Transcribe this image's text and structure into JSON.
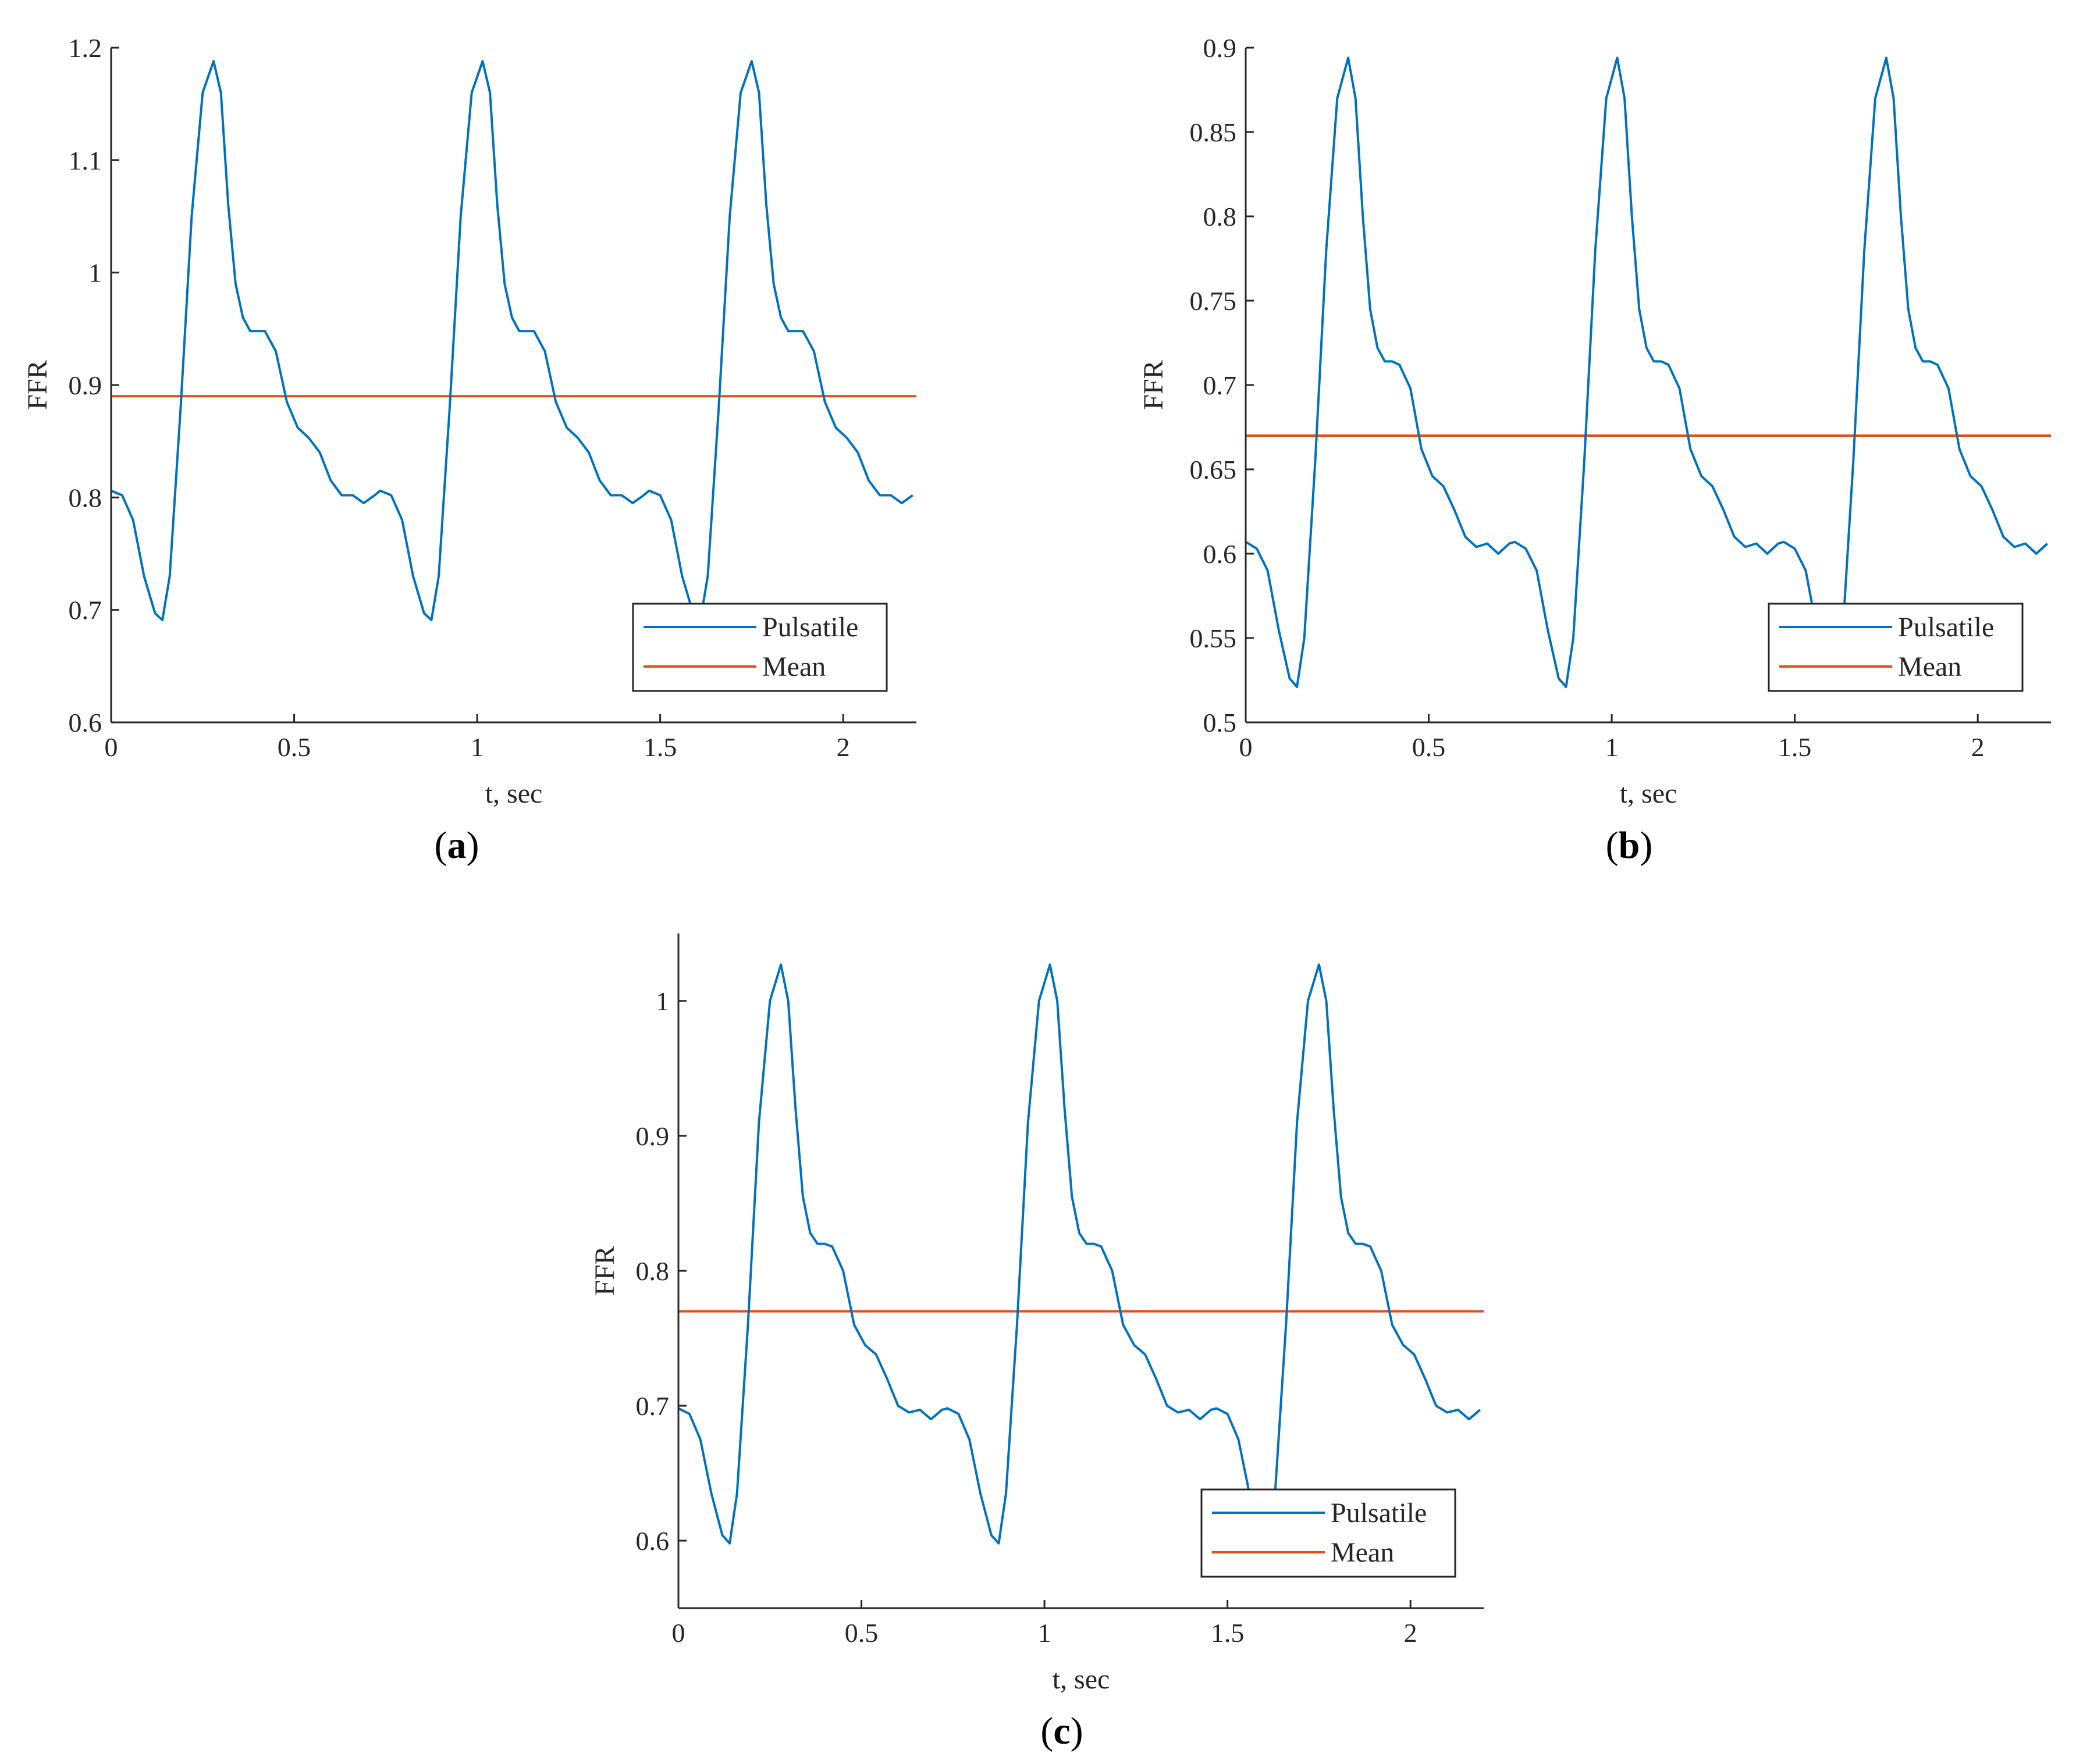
{
  "figure": {
    "colors": {
      "pulsatile": "#0072BD",
      "mean": "#D95319",
      "axis": "#262626"
    },
    "panels": [
      "a",
      "b",
      "c"
    ]
  },
  "chart_data": [
    {
      "id": "a",
      "type": "line",
      "panel_label": "a",
      "xlabel": "t, sec",
      "ylabel": "FFR",
      "xlim": [
        0,
        2.2
      ],
      "ylim": [
        0.6,
        1.2
      ],
      "xticks": [
        0,
        0.5,
        1,
        1.5,
        2
      ],
      "xtick_labels": [
        "0",
        "0.5",
        "1",
        "1.5",
        "2"
      ],
      "yticks": [
        0.6,
        0.7,
        0.8,
        0.9,
        1.0,
        1.1,
        1.2
      ],
      "ytick_labels": [
        "0.6",
        "0.7",
        "0.8",
        "0.9",
        "1",
        "1.1",
        "1.2"
      ],
      "legend": {
        "location": "bottom-right",
        "entries": [
          "Pulsatile",
          "Mean"
        ]
      },
      "series": [
        {
          "name": "Pulsatile",
          "period": 0.735,
          "x": [
            0,
            0.03,
            0.06,
            0.09,
            0.12,
            0.14,
            0.16,
            0.19,
            0.22,
            0.25,
            0.28,
            0.3,
            0.32,
            0.34,
            0.36,
            0.38,
            0.4,
            0.42,
            0.45,
            0.48,
            0.51,
            0.54,
            0.57,
            0.6,
            0.63,
            0.66,
            0.69,
            0.72,
            0.735
          ],
          "y": [
            0.806,
            0.802,
            0.78,
            0.73,
            0.697,
            0.691,
            0.73,
            0.88,
            1.05,
            1.16,
            1.188,
            1.16,
            1.06,
            0.99,
            0.96,
            0.948,
            0.948,
            0.948,
            0.93,
            0.885,
            0.862,
            0.853,
            0.84,
            0.815,
            0.802,
            0.802,
            0.795,
            0.802,
            0.806
          ]
        },
        {
          "name": "Mean",
          "x": [
            0,
            2.2
          ],
          "y": [
            0.89,
            0.89
          ]
        }
      ]
    },
    {
      "id": "b",
      "type": "line",
      "panel_label": "b",
      "xlabel": "t, sec",
      "ylabel": "FFR",
      "xlim": [
        0,
        2.2
      ],
      "ylim": [
        0.5,
        0.9
      ],
      "xticks": [
        0,
        0.5,
        1,
        1.5,
        2
      ],
      "xtick_labels": [
        "0",
        "0.5",
        "1",
        "1.5",
        "2"
      ],
      "yticks": [
        0.5,
        0.55,
        0.6,
        0.65,
        0.7,
        0.75,
        0.8,
        0.85,
        0.9
      ],
      "ytick_labels": [
        "0.5",
        "0.55",
        "0.6",
        "0.65",
        "0.7",
        "0.75",
        "0.8",
        "0.85",
        "0.9"
      ],
      "legend": {
        "location": "bottom-right",
        "entries": [
          "Pulsatile",
          "Mean"
        ]
      },
      "series": [
        {
          "name": "Pulsatile",
          "period": 0.735,
          "x": [
            0,
            0.03,
            0.06,
            0.09,
            0.12,
            0.14,
            0.16,
            0.19,
            0.22,
            0.25,
            0.28,
            0.3,
            0.32,
            0.34,
            0.36,
            0.38,
            0.4,
            0.42,
            0.45,
            0.48,
            0.51,
            0.54,
            0.57,
            0.6,
            0.63,
            0.66,
            0.69,
            0.72,
            0.735
          ],
          "y": [
            0.607,
            0.603,
            0.59,
            0.555,
            0.526,
            0.521,
            0.55,
            0.655,
            0.78,
            0.87,
            0.894,
            0.87,
            0.8,
            0.745,
            0.722,
            0.714,
            0.714,
            0.712,
            0.698,
            0.662,
            0.646,
            0.64,
            0.626,
            0.61,
            0.604,
            0.606,
            0.6,
            0.606,
            0.607
          ]
        },
        {
          "name": "Mean",
          "x": [
            0,
            2.2
          ],
          "y": [
            0.67,
            0.67
          ]
        }
      ]
    },
    {
      "id": "c",
      "type": "line",
      "panel_label": "c",
      "xlabel": "t, sec",
      "ylabel": "FFR",
      "xlim": [
        0,
        2.2
      ],
      "ylim": [
        0.55,
        1.05
      ],
      "xticks": [
        0,
        0.5,
        1,
        1.5,
        2
      ],
      "xtick_labels": [
        "0",
        "0.5",
        "1",
        "1.5",
        "2"
      ],
      "yticks": [
        0.6,
        0.7,
        0.8,
        0.9,
        1.0
      ],
      "ytick_labels": [
        "0.6",
        "0.7",
        "0.8",
        "0.9",
        "1"
      ],
      "legend": {
        "location": "bottom-right",
        "entries": [
          "Pulsatile",
          "Mean"
        ]
      },
      "series": [
        {
          "name": "Pulsatile",
          "period": 0.735,
          "x": [
            0,
            0.03,
            0.06,
            0.09,
            0.12,
            0.14,
            0.16,
            0.19,
            0.22,
            0.25,
            0.28,
            0.3,
            0.32,
            0.34,
            0.36,
            0.38,
            0.4,
            0.42,
            0.45,
            0.48,
            0.51,
            0.54,
            0.57,
            0.6,
            0.63,
            0.66,
            0.69,
            0.72,
            0.735
          ],
          "y": [
            0.698,
            0.694,
            0.675,
            0.635,
            0.604,
            0.598,
            0.635,
            0.76,
            0.91,
            1.0,
            1.027,
            1.0,
            0.92,
            0.855,
            0.828,
            0.82,
            0.82,
            0.818,
            0.8,
            0.76,
            0.745,
            0.738,
            0.72,
            0.7,
            0.695,
            0.697,
            0.69,
            0.697,
            0.698
          ]
        },
        {
          "name": "Mean",
          "x": [
            0,
            2.2
          ],
          "y": [
            0.77,
            0.77
          ]
        }
      ]
    }
  ]
}
